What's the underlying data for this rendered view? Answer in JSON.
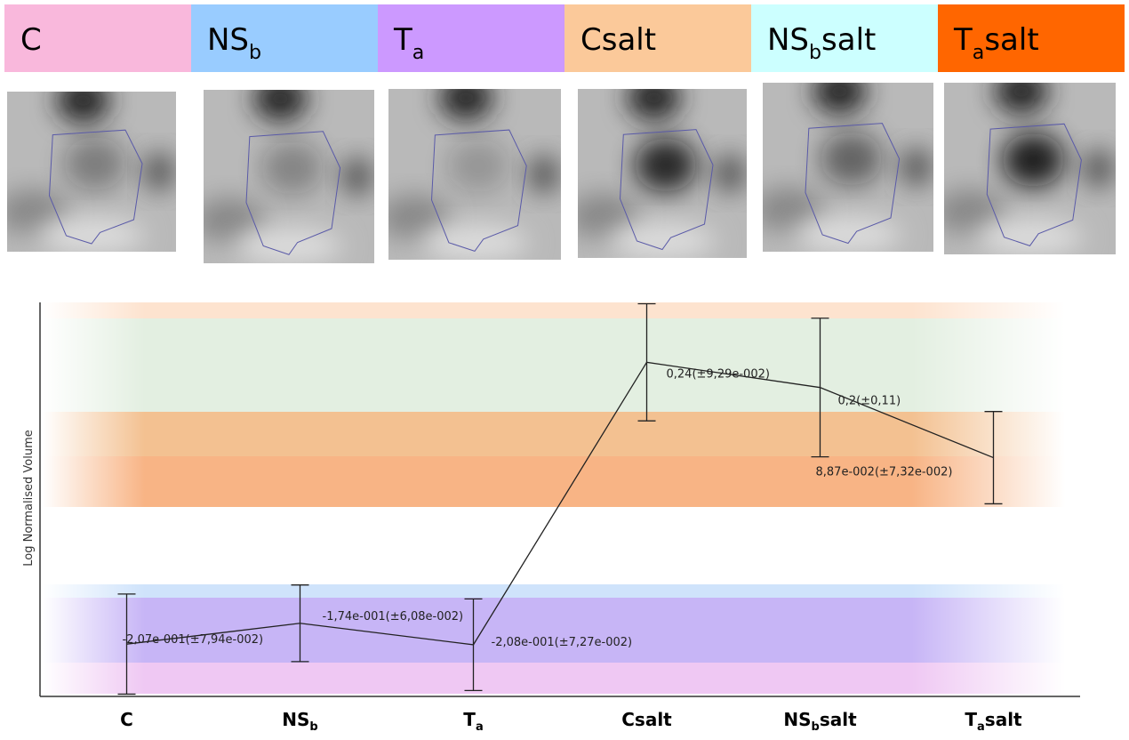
{
  "header": {
    "labels": [
      {
        "base": "C",
        "color": "#f9b8dc"
      },
      {
        "base": "NS",
        "sub": "b",
        "color": "#99ccff"
      },
      {
        "base": "T",
        "sub": "a",
        "color": "#cc99ff"
      },
      {
        "base": "Csalt",
        "color": "#fbc99a"
      },
      {
        "base": "NS",
        "sub": "b",
        "suffix": "salt",
        "color": "#ccffff"
      },
      {
        "base": "T",
        "sub": "a",
        "suffix": "salt",
        "color": "#ff6600"
      }
    ]
  },
  "chart_data": {
    "type": "line",
    "y_label": "Log Normalised Volume",
    "categories": [
      {
        "base": "C"
      },
      {
        "base": "NS",
        "sub": "b"
      },
      {
        "base": "T",
        "sub": "a"
      },
      {
        "base": "Csalt"
      },
      {
        "base": "NS",
        "sub": "b",
        "suffix": "salt"
      },
      {
        "base": "T",
        "sub": "a",
        "suffix": "salt"
      }
    ],
    "values": [
      -0.207,
      -0.174,
      -0.208,
      0.24,
      0.2,
      0.0887
    ],
    "errors": [
      0.0794,
      0.0608,
      0.0727,
      0.0929,
      0.11,
      0.0732
    ],
    "value_labels": [
      "-2,07e-001(±7,94e-002)",
      "-1,74e-001(±6,08e-002)",
      "-2,08e-001(±7,27e-002)",
      "0,24(±9,29e-002)",
      "0,2(±0,11)",
      "8,87e-002(±7,32e-002)"
    ],
    "color": "#222222",
    "ylim": [
      -0.29,
      0.335
    ]
  }
}
